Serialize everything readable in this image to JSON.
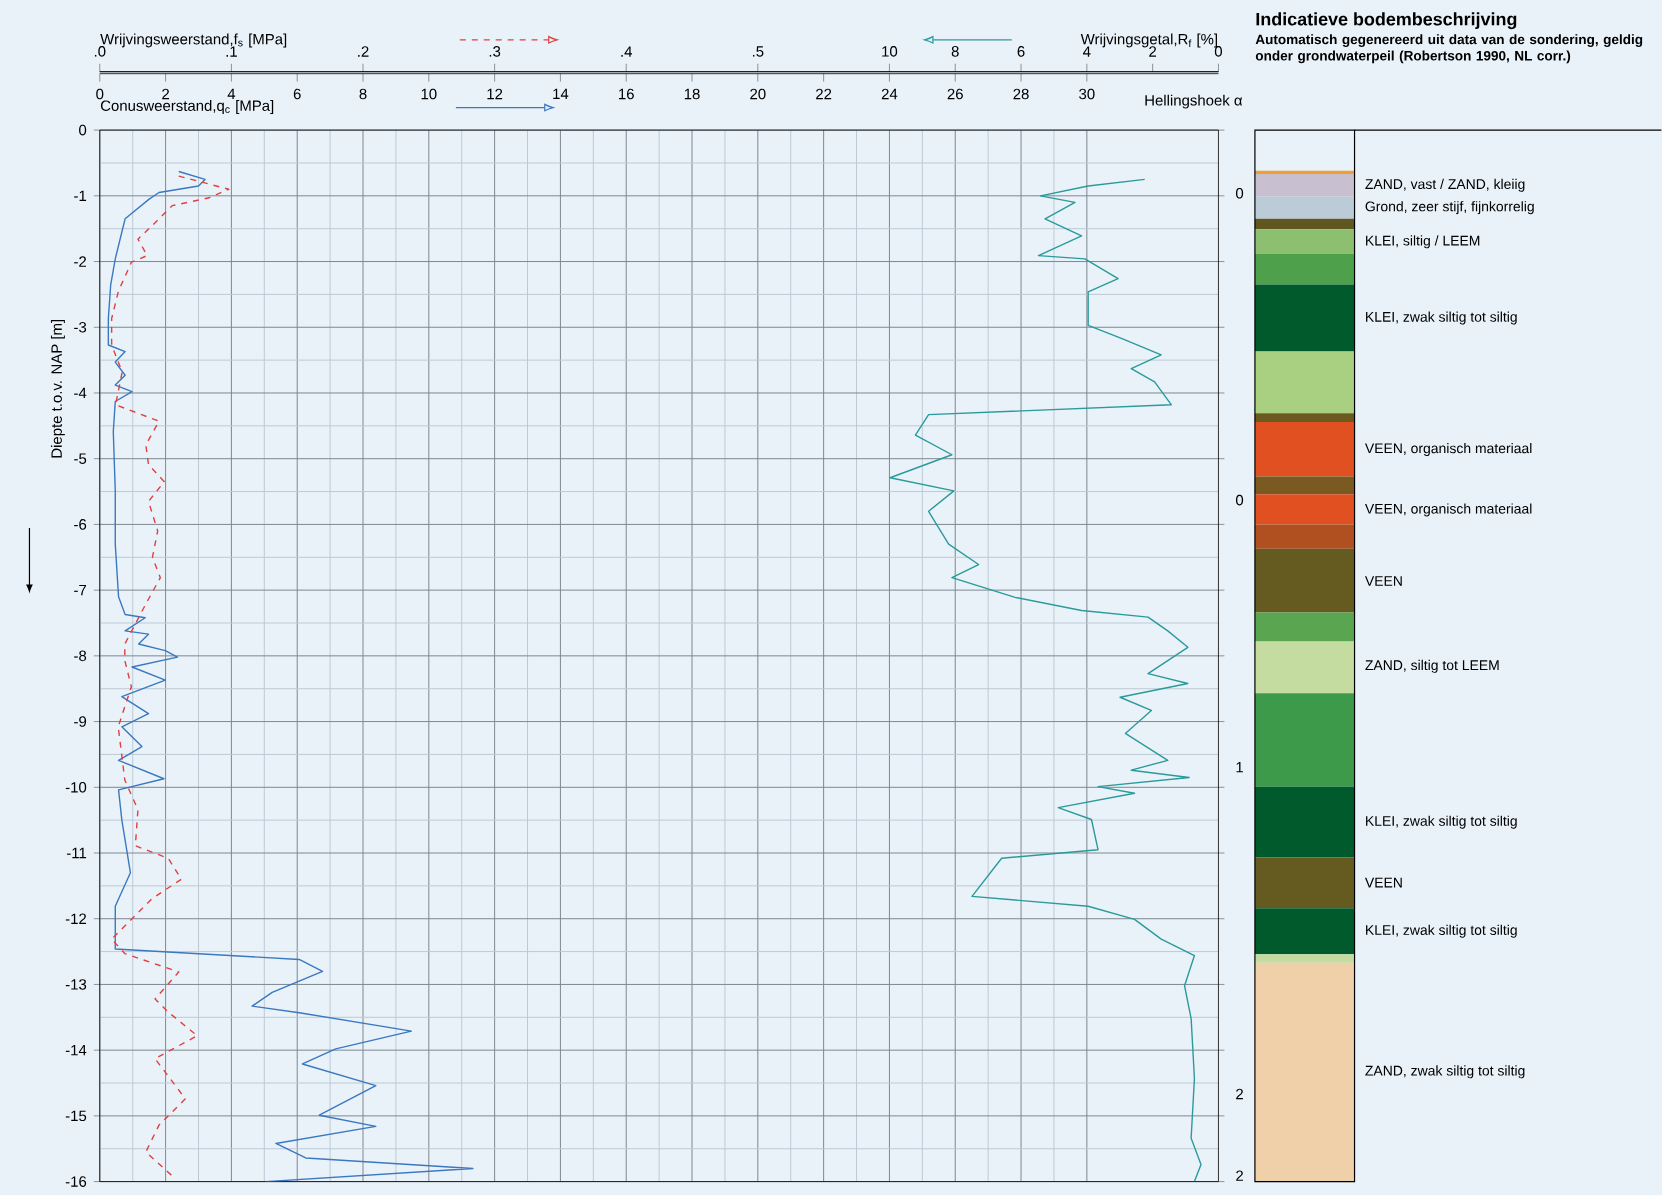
{
  "chart_data": [
    {
      "type": "line",
      "xlabel": "Conusweerstand,q$_{c}$ [MPa]",
      "x2label": "Wrijvingsweerstand,f$_{s}$ [MPa]",
      "ylabel": "Diepte t.o.v. NAP [m]",
      "xlim": [
        0,
        34
      ],
      "xticks": [
        0,
        2,
        4,
        6,
        8,
        10,
        12,
        14,
        16,
        18,
        20,
        22,
        24,
        26,
        28,
        30
      ],
      "x2lim": [
        0,
        0.85
      ],
      "x2ticks": [
        {
          "value": 0,
          "label": ".0"
        },
        {
          "value": 0.1,
          "label": ".1"
        },
        {
          "value": 0.2,
          "label": ".2"
        },
        {
          "value": 0.3,
          "label": ".3"
        },
        {
          "value": 0.4,
          "label": ".4"
        },
        {
          "value": 0.5,
          "label": ".5"
        }
      ],
      "ylim": [
        -16,
        0
      ],
      "yticks": [
        0,
        -1,
        -2,
        -3,
        -4,
        -5,
        -6,
        -7,
        -8,
        -9,
        -10,
        -11,
        -12,
        -13,
        -14,
        -15,
        -16
      ],
      "grid": true,
      "series": [
        {
          "color": "#3a78c0",
          "line_style": "solid",
          "x": [
            2.4,
            3.2,
            3.0,
            1.8,
            1.5,
            0.77,
            0.67,
            0.47,
            0.33,
            0.26,
            0.26,
            0.77,
            0.47,
            0.77,
            0.47,
            0.98,
            0.47,
            0.41,
            0.47,
            0.47,
            0.57,
            0.77,
            1.38,
            0.77,
            1.48,
            1.18,
            1.99,
            2.36,
            0.98,
            1.99,
            0.67,
            1.48,
            0.67,
            1.28,
            0.57,
            1.95,
            0.57,
            0.67,
            0.93,
            0.47,
            0.47,
            6.06,
            6.77,
            5.24,
            4.63,
            6.06,
            9.47,
            7.17,
            6.16,
            8.39,
            6.67,
            8.39,
            5.35,
            6.26,
            11.34,
            5.04
          ],
          "values": [
            -0.63,
            -0.75,
            -0.85,
            -0.95,
            -1.05,
            -1.35,
            -1.55,
            -1.96,
            -2.36,
            -2.87,
            -3.27,
            -3.37,
            -3.53,
            -3.73,
            -3.88,
            -3.98,
            -4.13,
            -4.59,
            -5.49,
            -6.3,
            -7.1,
            -7.37,
            -7.42,
            -7.62,
            -7.67,
            -7.82,
            -7.92,
            -8.02,
            -8.17,
            -8.37,
            -8.62,
            -8.88,
            -9.08,
            -9.38,
            -9.59,
            -9.87,
            -10.04,
            -10.5,
            -11.3,
            -11.81,
            -12.46,
            -12.62,
            -12.8,
            -13.12,
            -13.33,
            -13.43,
            -13.71,
            -13.98,
            -14.21,
            -14.54,
            -14.99,
            -15.16,
            -15.42,
            -15.64,
            -15.8,
            -16.0
          ]
        },
        {
          "color": "#e04040",
          "line_style": "dashed",
          "axis": "x2",
          "x": [
            0.06,
            0.098,
            0.083,
            0.055,
            0.04,
            0.029,
            0.036,
            0.024,
            0.014,
            0.009,
            0.009,
            0.017,
            0.012,
            0.045,
            0.035,
            0.037,
            0.049,
            0.037,
            0.044,
            0.04,
            0.046,
            0.035,
            0.019,
            0.019,
            0.024,
            0.014,
            0.019,
            0.029,
            0.027,
            0.052,
            0.062,
            0.04,
            0.009,
            0.019,
            0.06,
            0.042,
            0.052,
            0.074,
            0.042,
            0.065,
            0.045,
            0.035,
            0.057
          ],
          "values": [
            -0.7,
            -0.9,
            -1.03,
            -1.15,
            -1.45,
            -1.66,
            -1.91,
            -2.01,
            -2.46,
            -2.87,
            -3.27,
            -3.68,
            -4.18,
            -4.43,
            -4.79,
            -5.09,
            -5.35,
            -5.65,
            -6.1,
            -6.5,
            -6.81,
            -7.21,
            -7.82,
            -8.07,
            -8.47,
            -9.08,
            -9.89,
            -10.34,
            -10.89,
            -11.08,
            -11.4,
            -11.69,
            -12.31,
            -12.53,
            -12.81,
            -13.22,
            -13.42,
            -13.78,
            -14.13,
            -14.74,
            -15.14,
            -15.55,
            -15.95
          ]
        }
      ],
      "annotations": [
        "Hellingshoek α",
        "0",
        "0",
        "1",
        "2",
        "2"
      ]
    },
    {
      "type": "line",
      "xlabel": "Wrijvingsgetal,R$_{f}$ [%]",
      "xlim": [
        34,
        0
      ],
      "xticks": [
        10,
        8,
        6,
        4,
        2,
        0
      ],
      "ylim": [
        -16,
        0
      ],
      "tick_labels": "x",
      "series": [
        {
          "color": "#2a9a9a",
          "line_style": "solid",
          "x": [
            2.24,
            3.96,
            5.41,
            4.36,
            5.27,
            4.16,
            5.47,
            4.06,
            3.05,
            3.96,
            3.96,
            2.95,
            1.74,
            2.65,
            1.94,
            1.43,
            8.81,
            9.21,
            8.1,
            9.98,
            8.04,
            8.81,
            8.2,
            7.29,
            8.1,
            6.18,
            4.16,
            2.14,
            1.54,
            0.93,
            2.14,
            0.93,
            2.99,
            2.04,
            2.83,
            1.54,
            2.65,
            0.89,
            3.66,
            2.55,
            4.87,
            3.86,
            3.66,
            6.59,
            7.49,
            3.96,
            2.55,
            1.74,
            0.73,
            1.03,
            0.83,
            0.73,
            0.83,
            0.53,
            0.73
          ],
          "values": [
            -0.75,
            -0.85,
            -1.0,
            -1.1,
            -1.35,
            -1.61,
            -1.91,
            -1.96,
            -2.26,
            -2.46,
            -2.97,
            -3.17,
            -3.42,
            -3.63,
            -3.83,
            -4.18,
            -4.33,
            -4.64,
            -4.94,
            -5.29,
            -5.49,
            -5.8,
            -6.3,
            -6.61,
            -6.81,
            -7.11,
            -7.31,
            -7.41,
            -7.62,
            -7.87,
            -8.27,
            -8.42,
            -8.63,
            -8.83,
            -9.18,
            -9.59,
            -9.74,
            -9.85,
            -9.99,
            -10.09,
            -10.31,
            -10.49,
            -10.95,
            -11.08,
            -11.66,
            -11.81,
            -12.01,
            -12.31,
            -12.56,
            -13.02,
            -13.52,
            -14.43,
            -15.34,
            -15.74,
            -16.0
          ]
        }
      ]
    },
    {
      "type": "other",
      "title": "Indicatieve bodembeschrijving",
      "subtitle": "Automatisch gegenereerd uit data van de sondering, geldig onder grondwaterpeil (Robertson 1990, NL corr.)",
      "annotations": [
        "ZAND, vast / ZAND, kleiig",
        "Grond, zeer stijf, fijnkorrelig",
        "KLEI, siltig / LEEM",
        "KLEI, zwak siltig tot siltig",
        "VEEN, organisch materiaal",
        "VEEN, organisch materiaal",
        "VEEN",
        "ZAND, siltig tot LEEM",
        "KLEI, zwak siltig tot siltig",
        "VEEN",
        "KLEI, zwak siltig tot siltig",
        "ZAND, zwak siltig tot siltig"
      ]
    }
  ]
}
